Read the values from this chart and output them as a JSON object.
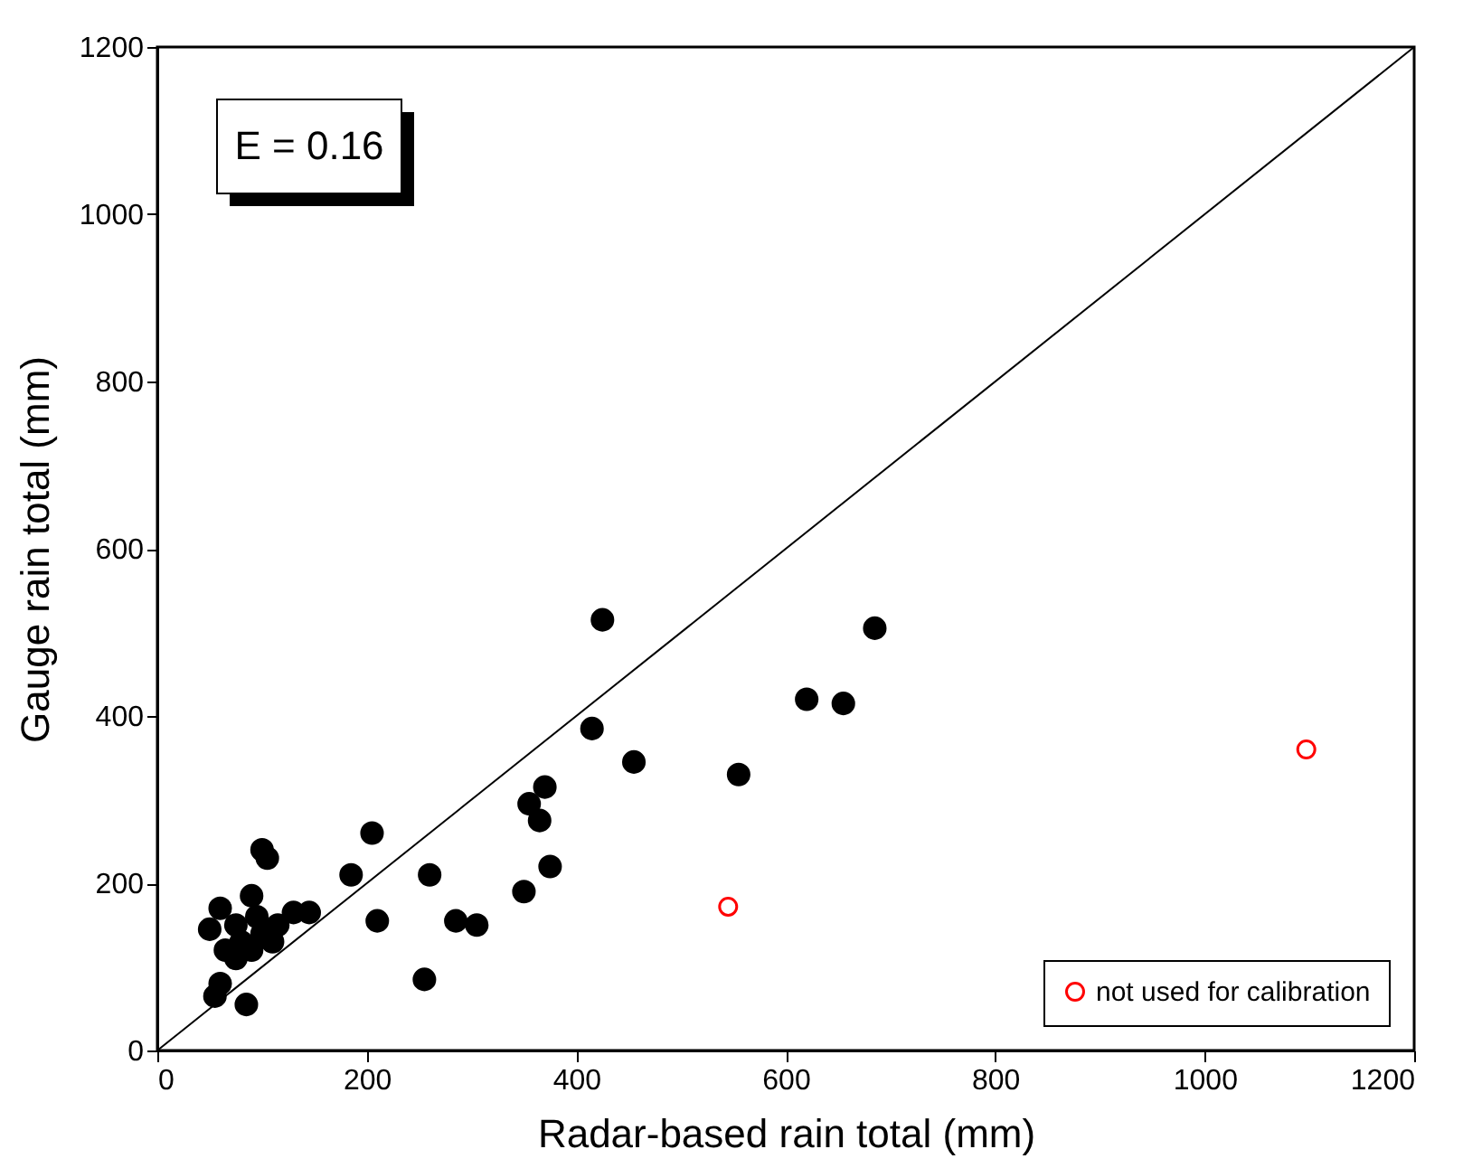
{
  "chart_data": {
    "type": "scatter",
    "xlabel": "Radar-based rain total (mm)",
    "ylabel": "Gauge rain total (mm)",
    "xlim": [
      0,
      1200
    ],
    "ylim": [
      0,
      1200
    ],
    "xticks": [
      0,
      200,
      400,
      600,
      800,
      {
        "value": 1000,
        "label": "1000"
      },
      {
        "value": 1200,
        "label": "1200"
      }
    ],
    "yticks": [
      0,
      200,
      400,
      600,
      800,
      {
        "value": 1000,
        "label": "1000"
      },
      {
        "value": 1200,
        "label": "1200"
      }
    ],
    "grid": false,
    "legend": "bottom right",
    "marker": "circle",
    "annotations": [
      "E = 0.16"
    ],
    "series": [
      {
        "color": "#000000",
        "x": [
          55,
          60,
          65,
          75,
          80,
          85,
          90,
          95,
          100,
          105,
          100,
          110,
          115,
          130,
          145,
          185,
          205,
          210,
          255,
          260,
          285,
          305,
          350,
          355,
          365,
          370,
          375,
          415,
          425,
          455,
          555,
          620,
          655,
          685,
          50,
          60,
          75,
          90
        ],
        "values": [
          65,
          170,
          120,
          150,
          130,
          55,
          185,
          160,
          240,
          230,
          140,
          130,
          150,
          165,
          165,
          210,
          260,
          155,
          85,
          210,
          155,
          150,
          190,
          295,
          275,
          315,
          220,
          385,
          515,
          345,
          330,
          420,
          415,
          505,
          145,
          80,
          110,
          120
        ]
      },
      {
        "name": "not used for calibration",
        "color": "#ff0000",
        "x": [
          545,
          1097
        ],
        "values": [
          172,
          360
        ]
      },
      {
        "type": "line",
        "color": "#000000",
        "marker": "none",
        "x": [
          0,
          1200
        ],
        "values": [
          0,
          1200
        ]
      }
    ]
  }
}
